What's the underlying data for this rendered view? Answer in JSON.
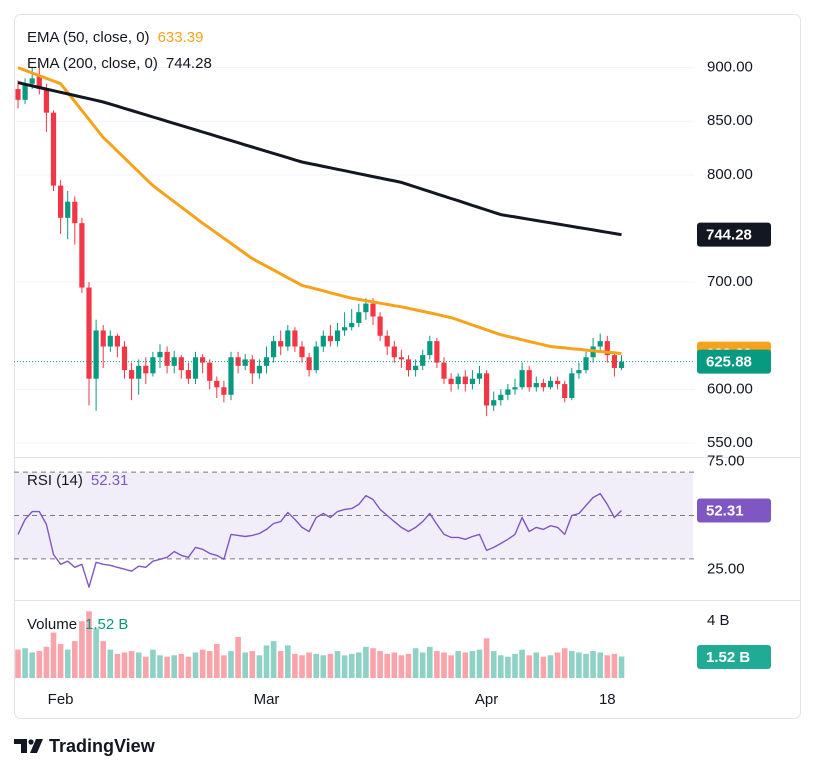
{
  "chart_data": [
    {
      "type": "candlestick",
      "categories": [
        null,
        null,
        null,
        null,
        null,
        null,
        "Feb",
        null,
        null,
        null,
        null,
        null,
        null,
        null,
        null,
        null,
        null,
        null,
        null,
        null,
        null,
        null,
        null,
        null,
        null,
        null,
        null,
        null,
        null,
        null,
        null,
        null,
        null,
        null,
        null,
        "Mar",
        null,
        null,
        null,
        null,
        null,
        null,
        null,
        null,
        null,
        null,
        null,
        null,
        null,
        null,
        null,
        null,
        null,
        null,
        null,
        null,
        null,
        null,
        null,
        null,
        null,
        null,
        null,
        null,
        null,
        null,
        "Apr",
        null,
        null,
        null,
        null,
        null,
        null,
        null,
        null,
        null,
        null,
        null,
        null,
        null,
        null,
        null,
        null,
        "18",
        null,
        null
      ],
      "open": [
        880,
        870,
        885,
        892,
        880,
        858,
        790,
        760,
        775,
        755,
        695,
        610,
        655,
        640,
        650,
        640,
        618,
        610,
        622,
        615,
        630,
        635,
        622,
        630,
        618,
        610,
        630,
        625,
        608,
        602,
        595,
        630,
        622,
        628,
        615,
        622,
        630,
        645,
        640,
        655,
        640,
        630,
        618,
        640,
        650,
        645,
        655,
        658,
        662,
        672,
        680,
        668,
        650,
        640,
        630,
        628,
        618,
        622,
        632,
        645,
        625,
        610,
        605,
        612,
        605,
        610,
        615,
        585,
        590,
        595,
        600,
        602,
        618,
        602,
        606,
        602,
        608,
        605,
        592,
        615,
        618,
        630,
        640,
        645,
        632,
        620
      ],
      "high": [
        888,
        890,
        900,
        905,
        885,
        860,
        795,
        785,
        780,
        760,
        700,
        665,
        660,
        655,
        652,
        645,
        625,
        628,
        630,
        635,
        642,
        640,
        636,
        632,
        625,
        635,
        633,
        628,
        612,
        608,
        635,
        635,
        633,
        632,
        628,
        640,
        650,
        655,
        660,
        658,
        645,
        634,
        645,
        655,
        660,
        662,
        672,
        675,
        680,
        685,
        685,
        672,
        655,
        645,
        637,
        632,
        628,
        637,
        650,
        648,
        630,
        615,
        615,
        618,
        618,
        622,
        618,
        598,
        600,
        605,
        610,
        625,
        622,
        612,
        610,
        612,
        612,
        608,
        620,
        625,
        635,
        648,
        652,
        650,
        635,
        632
      ],
      "low": [
        862,
        866,
        880,
        875,
        840,
        785,
        745,
        740,
        735,
        690,
        585,
        580,
        620,
        635,
        630,
        610,
        590,
        595,
        605,
        612,
        620,
        615,
        615,
        610,
        605,
        605,
        615,
        600,
        592,
        588,
        590,
        615,
        618,
        605,
        610,
        615,
        625,
        632,
        636,
        635,
        625,
        612,
        615,
        635,
        640,
        640,
        650,
        655,
        658,
        665,
        660,
        645,
        632,
        625,
        620,
        612,
        612,
        618,
        628,
        620,
        605,
        598,
        600,
        598,
        600,
        605,
        575,
        580,
        585,
        590,
        595,
        600,
        598,
        598,
        598,
        600,
        600,
        588,
        590,
        610,
        615,
        625,
        635,
        625,
        612,
        618
      ],
      "close": [
        870,
        885,
        890,
        880,
        858,
        790,
        760,
        775,
        755,
        695,
        610,
        655,
        640,
        650,
        640,
        618,
        610,
        622,
        615,
        630,
        635,
        622,
        630,
        618,
        610,
        630,
        625,
        608,
        602,
        595,
        630,
        622,
        628,
        615,
        622,
        630,
        645,
        640,
        655,
        640,
        630,
        618,
        640,
        650,
        645,
        655,
        658,
        662,
        672,
        680,
        668,
        650,
        640,
        630,
        628,
        618,
        622,
        632,
        645,
        625,
        610,
        605,
        612,
        605,
        610,
        615,
        585,
        590,
        595,
        600,
        602,
        618,
        602,
        606,
        602,
        608,
        605,
        592,
        615,
        618,
        630,
        640,
        645,
        632,
        620,
        625.88
      ],
      "up_color": "#089981",
      "down_color": "#f23645",
      "series": [
        {
          "name": "EMA (50, close, 0)",
          "color": "#f7a21b",
          "values": [
            900,
            897.5,
            895,
            892.5,
            890,
            887.5,
            885,
            876.7,
            868.3,
            860,
            851.7,
            843.3,
            835,
            828.6,
            822.1,
            815.7,
            809.3,
            802.9,
            796.4,
            790,
            785,
            780,
            775,
            770,
            765,
            760,
            755,
            750.3,
            745.6,
            740.9,
            736.1,
            731.4,
            726.7,
            722,
            718.4,
            714.9,
            711.3,
            707.7,
            704.1,
            700.6,
            697,
            695.3,
            693.6,
            691.9,
            690.1,
            688.4,
            686.7,
            685,
            683.9,
            682.7,
            681.6,
            680.4,
            679.3,
            678.1,
            677,
            675.6,
            674.1,
            672.7,
            671.3,
            669.9,
            668.4,
            667,
            664.7,
            662.4,
            660.1,
            657.9,
            655.6,
            653.3,
            651,
            649.4,
            647.9,
            646.3,
            644.7,
            643.1,
            641.6,
            640,
            639.3,
            638.7,
            638,
            637.4,
            636.7,
            636,
            635.4,
            634.7,
            634.1,
            633.39
          ]
        },
        {
          "name": "EMA (200, close, 0)",
          "color": "#131722",
          "values": [
            886,
            884.5,
            883,
            881.5,
            880,
            878.5,
            877,
            875.5,
            874,
            872.5,
            871,
            869.5,
            868,
            866,
            864,
            862,
            860,
            858,
            856,
            854,
            852,
            850,
            848,
            846,
            844,
            842,
            840,
            838,
            836,
            834,
            832,
            830,
            828,
            826,
            824,
            822,
            820,
            818,
            816,
            814,
            812,
            810.6,
            809.3,
            807.9,
            806.6,
            805.2,
            803.9,
            802.5,
            801.1,
            799.8,
            798.4,
            797.1,
            795.7,
            794.4,
            793,
            790.9,
            788.7,
            786.6,
            784.4,
            782.3,
            780.1,
            778,
            775.9,
            773.7,
            771.6,
            769.4,
            767.3,
            765.1,
            763,
            761.9,
            760.8,
            759.7,
            758.6,
            757.5,
            756.4,
            755.3,
            754.2,
            753.1,
            752,
            750.9,
            749.8,
            748.7,
            747.6,
            746.5,
            745.4,
            744.28
          ]
        }
      ],
      "ylim": [
        537,
        950
      ],
      "yticks": [
        {
          "value": 900,
          "label": "900.00"
        },
        {
          "value": 850,
          "label": "850.00"
        },
        {
          "value": 800,
          "label": "800.00"
        },
        {
          "value": 700,
          "label": "700.00"
        },
        {
          "value": 600,
          "label": "600.00"
        },
        {
          "value": 550,
          "label": "550.00"
        }
      ],
      "grid": true
    },
    {
      "type": "line",
      "series": [
        {
          "name": "RSI (14)",
          "color": "#7e57c2",
          "values": [
            41.3,
            48.2,
            51.8,
            51.8,
            45.9,
            32,
            27.5,
            28.9,
            26.1,
            27.5,
            16.9,
            28.4,
            27.5,
            27,
            26.1,
            25.2,
            24.3,
            26.6,
            26.1,
            28.9,
            29.8,
            30.7,
            33.4,
            31.6,
            30.7,
            35.3,
            34.4,
            32.5,
            31.6,
            29.8,
            41.3,
            40.8,
            40.3,
            40.8,
            41.7,
            43.6,
            46.3,
            47.2,
            51.4,
            48.2,
            44.5,
            42.6,
            49.1,
            50.9,
            49.1,
            51.8,
            52.8,
            53.2,
            55.1,
            59.2,
            57.4,
            52.8,
            50,
            47.2,
            44.5,
            42.6,
            44.5,
            47.2,
            50.9,
            45.9,
            41.3,
            39.9,
            39.9,
            39,
            40.3,
            41.3,
            33.9,
            35.3,
            37.1,
            39,
            41.3,
            49.1,
            42.6,
            44.5,
            43.6,
            45.3,
            44.5,
            41.3,
            50,
            50.9,
            54.6,
            58.3,
            60.1,
            55.1,
            49.1,
            52.31
          ]
        }
      ],
      "levels": [
        70,
        50,
        30
      ],
      "ylim": [
        11,
        77
      ],
      "yticks": [
        {
          "value": 75,
          "label": "75.00"
        },
        {
          "value": 25,
          "label": "25.00"
        }
      ]
    },
    {
      "type": "bar",
      "series": [
        {
          "name": "Volume",
          "values": [
            2.0,
            2.1,
            1.8,
            1.9,
            2.2,
            3.2,
            2.4,
            2.0,
            2.6,
            4.0,
            4.7,
            3.5,
            2.6,
            2.0,
            1.7,
            1.8,
            1.9,
            1.8,
            1.5,
            2.0,
            1.6,
            1.5,
            1.6,
            1.7,
            1.5,
            1.8,
            2.0,
            1.9,
            2.4,
            1.6,
            1.9,
            2.9,
            1.8,
            1.9,
            1.6,
            2.3,
            2.6,
            1.9,
            2.3,
            1.7,
            1.6,
            1.8,
            1.7,
            1.6,
            1.7,
            1.9,
            1.6,
            1.7,
            1.8,
            2.2,
            2.1,
            1.9,
            1.7,
            1.8,
            1.6,
            1.7,
            2.1,
            1.8,
            2.2,
            1.9,
            1.8,
            1.6,
            1.9,
            1.8,
            1.9,
            2.0,
            2.8,
            1.9,
            1.6,
            1.5,
            1.7,
            2.0,
            1.6,
            1.8,
            1.5,
            1.6,
            1.8,
            2.1,
            1.9,
            1.8,
            1.7,
            1.9,
            1.8,
            1.6,
            1.7,
            1.52
          ],
          "value_labels": [
            null,
            null,
            null,
            null,
            null,
            null,
            null,
            null,
            null,
            null,
            null,
            null,
            null,
            null,
            null,
            null,
            null,
            null,
            null,
            null,
            null,
            null,
            null,
            null,
            null,
            null,
            null,
            null,
            null,
            null,
            null,
            null,
            null,
            null,
            null,
            null,
            null,
            null,
            null,
            null,
            null,
            null,
            null,
            null,
            null,
            null,
            null,
            null,
            null,
            null,
            null,
            null,
            null,
            null,
            null,
            null,
            null,
            null,
            null,
            null,
            null,
            null,
            null,
            null,
            null,
            null,
            null,
            null,
            null,
            null,
            null,
            null,
            null,
            null,
            null,
            null,
            null,
            null,
            null,
            null,
            null,
            null,
            null,
            null,
            null,
            "1.52 B"
          ]
        }
      ],
      "ylim": [
        0,
        5.5
      ],
      "yticks": [
        {
          "value": 4,
          "label": "4 B"
        }
      ]
    }
  ],
  "footer": {
    "brand": "TradingView"
  }
}
